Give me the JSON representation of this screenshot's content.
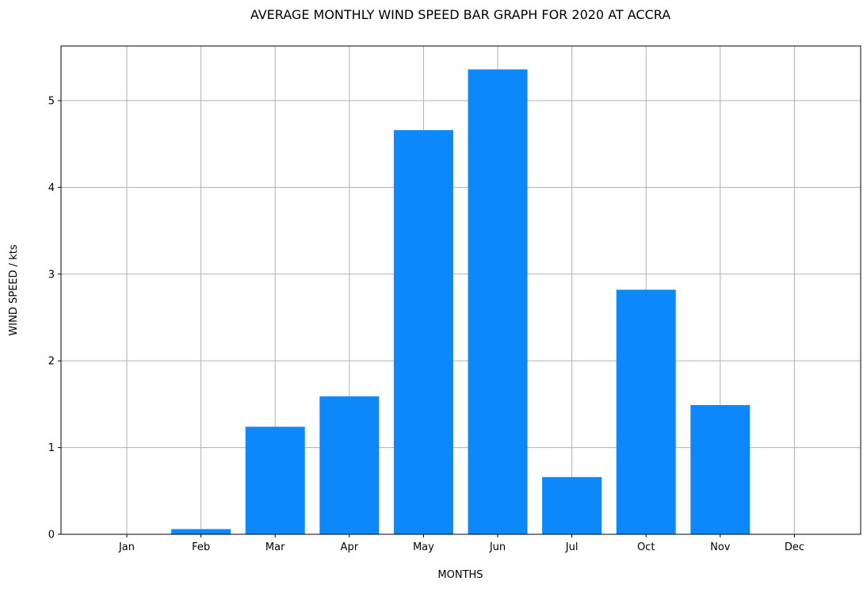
{
  "chart_data": {
    "type": "bar",
    "title": "AVERAGE MONTHLY WIND SPEED BAR GRAPH FOR 2020 AT ACCRA",
    "xlabel": "MONTHS",
    "ylabel": "WIND SPEED / kts",
    "categories": [
      "Jan",
      "Feb",
      "Mar",
      "Apr",
      "May",
      "Jun",
      "Jul",
      "Oct",
      "Nov",
      "Dec"
    ],
    "values": [
      0,
      0.06,
      1.24,
      1.59,
      4.66,
      5.36,
      0.66,
      2.82,
      1.49,
      0
    ],
    "ylim": [
      0,
      5.63
    ],
    "yticks": [
      0,
      1,
      2,
      3,
      4,
      5
    ],
    "grid": true,
    "bar_color": "#0d88fb",
    "grid_color": "#b0b0b0"
  }
}
